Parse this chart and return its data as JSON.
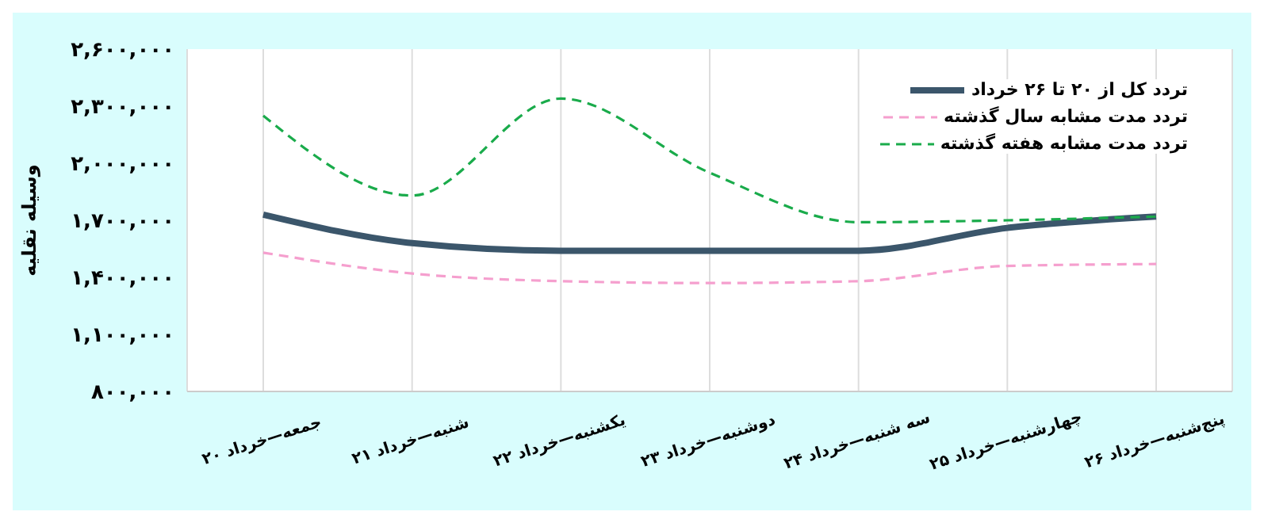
{
  "chart_data": {
    "type": "line",
    "ylabel": "وسیله نقلیه",
    "categories": [
      "جمعه—خرداد ۲۰",
      "شنبه—خرداد ۲۱",
      "یکشنبه—خرداد ۲۲",
      "دوشنبه—خرداد ۲۳",
      "سه شنبه—خرداد ۲۴",
      "چهارشنبه—خرداد ۲۵",
      "پنج‌شنبه—خرداد ۲۶"
    ],
    "series": [
      {
        "name": "تردد کل از ۲۰ تا ۲۶ خرداد",
        "color": "#3b566b",
        "line_style": "solid",
        "values": [
          1730000,
          1580000,
          1540000,
          1540000,
          1540000,
          1660000,
          1720000
        ]
      },
      {
        "name": "تردد مدت مشابه سال گذشته",
        "color": "#f59fce",
        "line_style": "dashed",
        "values": [
          1530000,
          1420000,
          1380000,
          1370000,
          1380000,
          1460000,
          1470000
        ]
      },
      {
        "name": "تردد مدت مشابه هفته گذشته",
        "color": "#1aab4b",
        "line_style": "dashed",
        "values": [
          2250000,
          1830000,
          2340000,
          1950000,
          1690000,
          1700000,
          1720000
        ]
      }
    ],
    "ylim": [
      800000,
      2600000
    ],
    "yticks": [
      {
        "value": 800000,
        "label": "۸۰۰,۰۰۰"
      },
      {
        "value": 1100000,
        "label": "۱,۱۰۰,۰۰۰"
      },
      {
        "value": 1400000,
        "label": "۱,۴۰۰,۰۰۰"
      },
      {
        "value": 1700000,
        "label": "۱,۷۰۰,۰۰۰"
      },
      {
        "value": 2000000,
        "label": "۲,۰۰۰,۰۰۰"
      },
      {
        "value": 2300000,
        "label": "۲,۳۰۰,۰۰۰"
      },
      {
        "value": 2600000,
        "label": "۲,۶۰۰,۰۰۰"
      }
    ],
    "grid": "x",
    "legend": "top right",
    "marker": "none"
  }
}
